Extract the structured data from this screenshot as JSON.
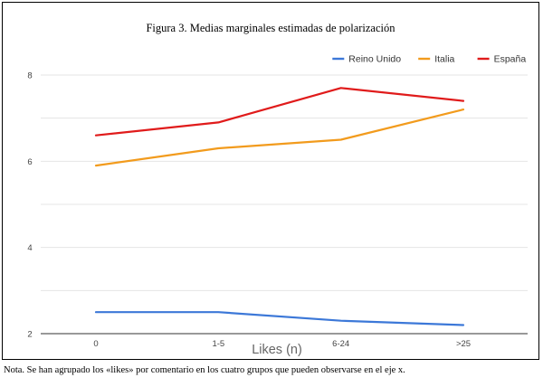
{
  "chart_data": {
    "type": "line",
    "title": "Figura 3. Medias marginales estimadas de polarización",
    "xlabel": "Likes (n)",
    "ylabel": "",
    "categories": [
      "0",
      "1-5",
      "6-24",
      ">25"
    ],
    "ylim": [
      2,
      8
    ],
    "yticks": [
      2,
      4,
      6,
      8
    ],
    "grid": true,
    "legend_position": "top-right",
    "series": [
      {
        "name": "Reino Unido",
        "color": "#3c78d8",
        "values": [
          2.5,
          2.5,
          2.3,
          2.2
        ]
      },
      {
        "name": "Italia",
        "color": "#f29b1d",
        "values": [
          5.9,
          6.3,
          6.5,
          7.2
        ]
      },
      {
        "name": "España",
        "color": "#e01b1b",
        "values": [
          6.6,
          6.9,
          7.7,
          7.4
        ]
      }
    ]
  },
  "note": "Nota. Se han agrupado los «likes» por comentario en los cuatro grupos que pueden observarse en el eje x."
}
